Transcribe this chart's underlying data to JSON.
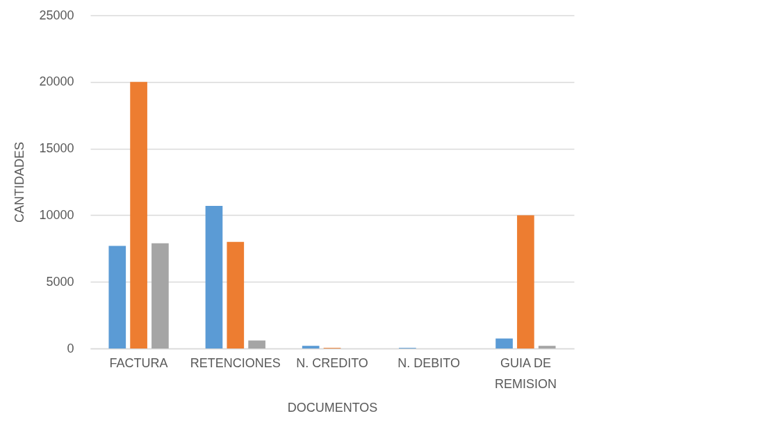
{
  "chart_data": {
    "type": "bar",
    "xlabel": "DOCUMENTOS",
    "ylabel": "CANTIDADES",
    "categories": [
      "FACTURA",
      "RETENCIONES",
      "N. CREDITO",
      "N. DEBITO",
      "GUIA DE REMISION"
    ],
    "series": [
      {
        "color": "#5b9bd5",
        "values": [
          7700,
          10700,
          200,
          50,
          750
        ]
      },
      {
        "color": "#ed7d31",
        "values": [
          20000,
          8000,
          50,
          0,
          10000
        ]
      },
      {
        "color": "#a5a5a5",
        "values": [
          7900,
          600,
          0,
          0,
          200
        ]
      }
    ],
    "ylim": [
      0,
      25000
    ],
    "yticks": [
      0,
      5000,
      10000,
      15000,
      20000,
      25000
    ],
    "grid": "y"
  }
}
